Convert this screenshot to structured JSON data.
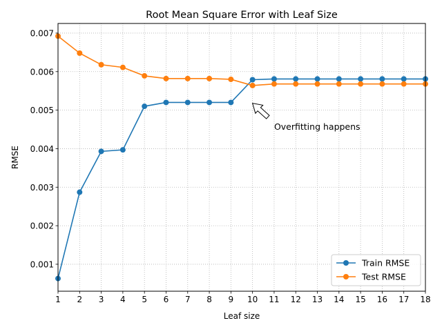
{
  "chart_data": {
    "type": "line",
    "title": "Root Mean Square Error with Leaf Size",
    "xlabel": "Leaf size",
    "ylabel": "RMSE",
    "x": [
      1,
      2,
      3,
      4,
      5,
      6,
      7,
      8,
      9,
      10,
      11,
      12,
      13,
      14,
      15,
      16,
      17,
      18
    ],
    "xlim": [
      1,
      18
    ],
    "ylim": [
      0.0003,
      0.00725
    ],
    "xticks": [
      "1",
      "2",
      "3",
      "4",
      "5",
      "6",
      "7",
      "8",
      "9",
      "10",
      "11",
      "12",
      "13",
      "14",
      "15",
      "16",
      "17",
      "18"
    ],
    "yticks": [
      "0.001",
      "0.002",
      "0.003",
      "0.004",
      "0.005",
      "0.006",
      "0.007"
    ],
    "ytick_values": [
      0.001,
      0.002,
      0.003,
      0.004,
      0.005,
      0.006,
      0.007
    ],
    "grid": true,
    "legend_position": "bottom-right",
    "series": [
      {
        "name": "Train RMSE",
        "color": "#1f77b4",
        "values": [
          0.00063,
          0.00287,
          0.00393,
          0.00397,
          0.0051,
          0.0052,
          0.0052,
          0.0052,
          0.0052,
          0.00579,
          0.00581,
          0.00581,
          0.00581,
          0.00581,
          0.00581,
          0.00581,
          0.00581,
          0.00581
        ]
      },
      {
        "name": "Test RMSE",
        "color": "#ff7f0e",
        "values": [
          0.00692,
          0.00648,
          0.00618,
          0.00611,
          0.00589,
          0.00582,
          0.00582,
          0.00582,
          0.0058,
          0.00564,
          0.00568,
          0.00568,
          0.00568,
          0.00568,
          0.00568,
          0.00568,
          0.00568,
          0.00568
        ]
      }
    ],
    "annotation": {
      "text": "Overfitting happens",
      "point": [
        10,
        0.00518
      ],
      "text_position": [
        11,
        0.00449
      ]
    }
  }
}
